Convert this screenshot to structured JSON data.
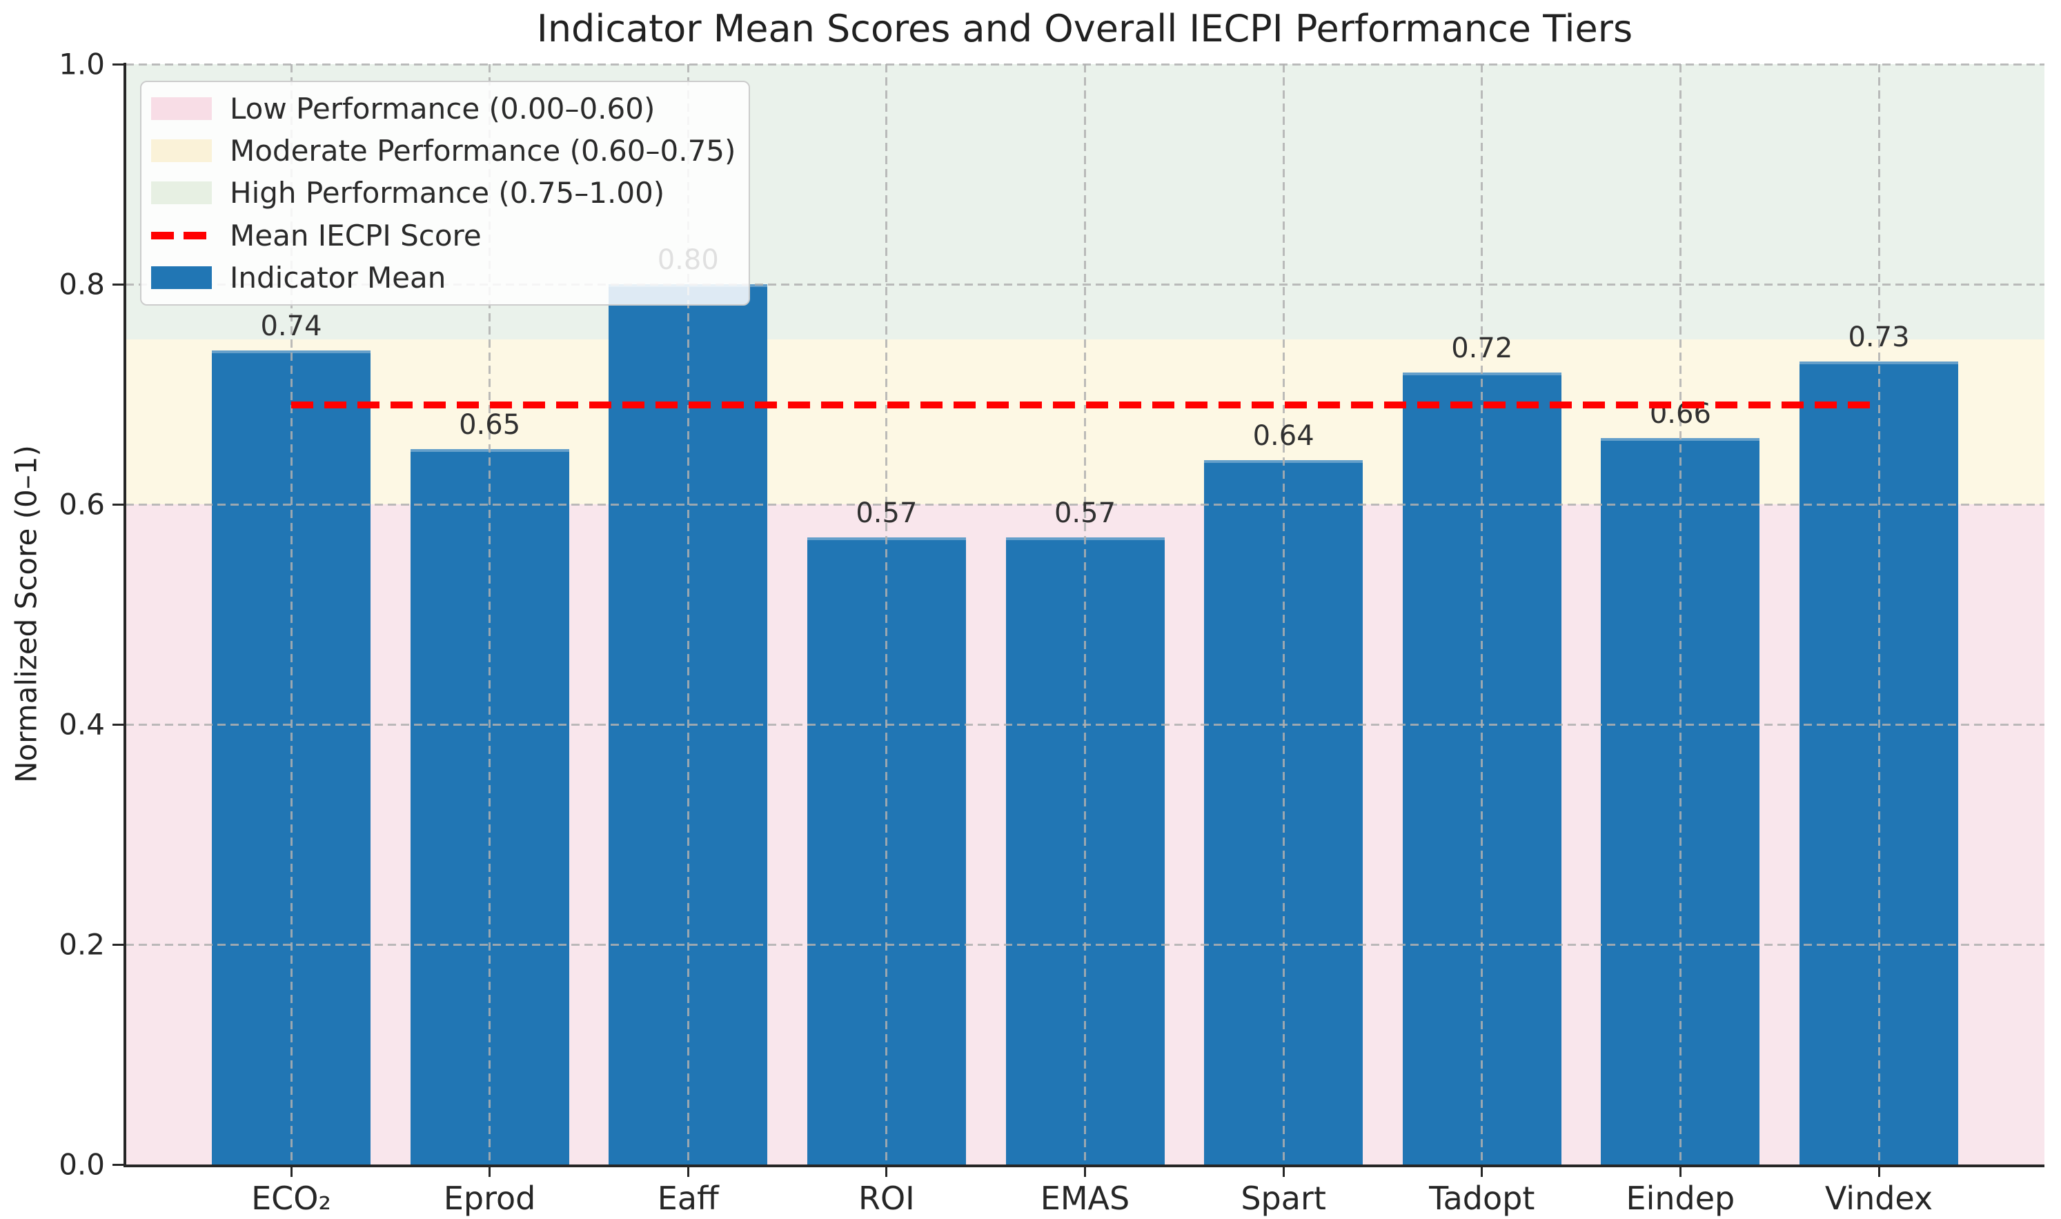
{
  "chart_data": {
    "type": "bar",
    "title": "Indicator Mean Scores and Overall IECPI Performance Tiers",
    "ylabel": "Normalized Score (0–1)",
    "ylim": [
      0,
      1
    ],
    "grid": true,
    "legend_position": "upper left",
    "categories": [
      "ECO₂",
      "Eprod",
      "Eaff",
      "ROI",
      "EMAS",
      "Spart",
      "Tadopt",
      "Eindep",
      "Vindex"
    ],
    "values": [
      0.74,
      0.65,
      0.8,
      0.57,
      0.57,
      0.64,
      0.72,
      0.66,
      0.73
    ],
    "bar_labels": [
      "0.74",
      "0.65",
      "0.80",
      "0.57",
      "0.57",
      "0.64",
      "0.72",
      "0.66",
      "0.73"
    ],
    "bar_color": "#2176b4",
    "y_ticks": [
      {
        "value": 0.0,
        "label": "0.0"
      },
      {
        "value": 0.2,
        "label": "0.2"
      },
      {
        "value": 0.4,
        "label": "0.4"
      },
      {
        "value": 0.6,
        "label": "0.6"
      },
      {
        "value": 0.8,
        "label": "0.8"
      },
      {
        "value": 1.0,
        "label": "1.0"
      }
    ],
    "mean_line": {
      "value": 0.69,
      "label": "Mean IECPI Score",
      "color": "#ff0000"
    },
    "bands": [
      {
        "name": "low",
        "label": "Low Performance (0.00–0.60)",
        "from": 0.0,
        "to": 0.6,
        "color": "#f9e6ec"
      },
      {
        "name": "moderate",
        "label": "Moderate Performance (0.60–0.75)",
        "from": 0.6,
        "to": 0.75,
        "color": "#fdf8e4"
      },
      {
        "name": "high",
        "label": "High Performance (0.75–1.00)",
        "from": 0.75,
        "to": 1.0,
        "color": "#eaf2eb"
      }
    ],
    "legend": [
      {
        "label": "Low Performance (0.00–0.60)",
        "swatch": "patch",
        "color": "#f8dde6"
      },
      {
        "label": "Moderate Performance (0.60–0.75)",
        "swatch": "patch",
        "color": "#faf2d8"
      },
      {
        "label": "High Performance (0.75–1.00)",
        "swatch": "patch",
        "color": "#e7f0e3"
      },
      {
        "label": "Mean IECPI Score",
        "swatch": "dashes",
        "color": "#ff0000"
      },
      {
        "label": "Indicator Mean",
        "swatch": "patch",
        "color": "#2176b4"
      }
    ]
  }
}
